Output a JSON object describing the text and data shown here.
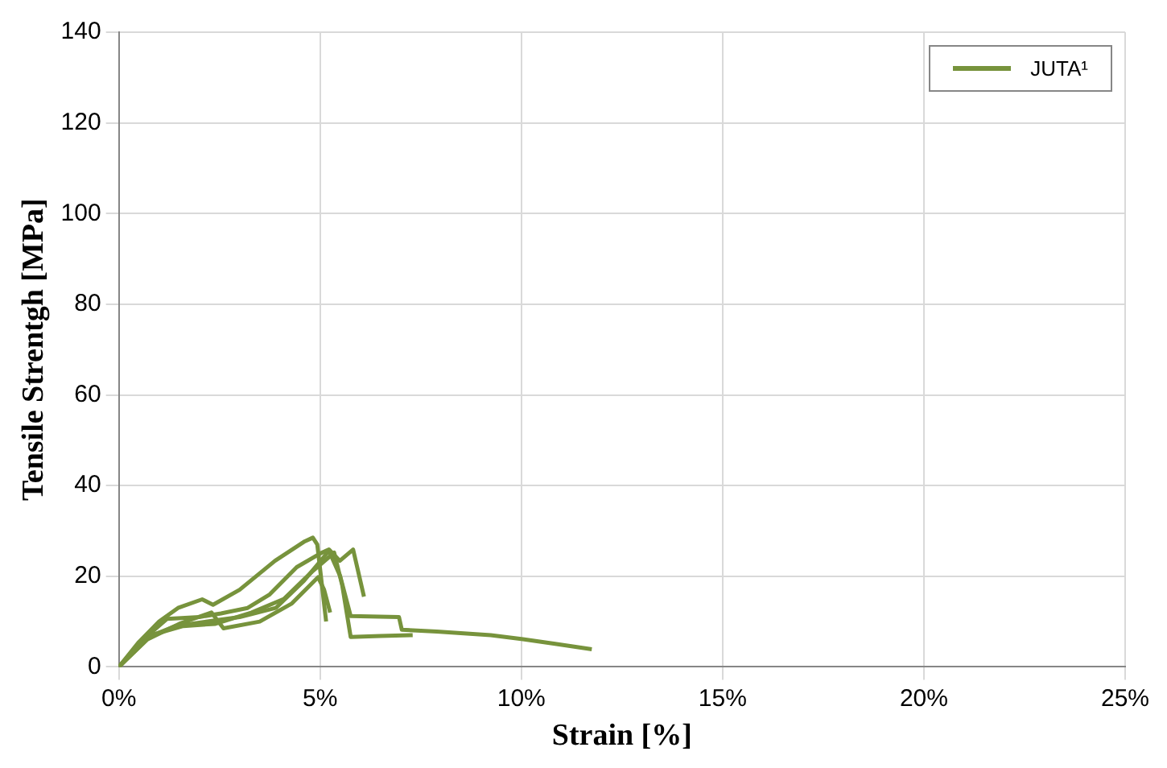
{
  "chart_data": {
    "type": "line",
    "xlabel": "Strain [%]",
    "ylabel": "Tensile Strentgh [MPa]",
    "xlim": [
      0,
      25
    ],
    "xticks": [
      {
        "value": 0,
        "label": "0%"
      },
      {
        "value": 5,
        "label": "5%"
      },
      {
        "value": 10,
        "label": "10%"
      },
      {
        "value": 15,
        "label": "15%"
      },
      {
        "value": 20,
        "label": "20%"
      },
      {
        "value": 25,
        "label": "25%"
      }
    ],
    "ylim": [
      0,
      140
    ],
    "yticks": [
      0,
      20,
      40,
      60,
      80,
      100,
      120,
      140
    ],
    "grid": true,
    "legend": "top right",
    "marker": "none",
    "line_style": "solid",
    "series": [
      {
        "name": "JUTA¹",
        "color": "#77933c",
        "x": [
          0,
          0.5,
          1.0,
          1.47,
          2.07,
          2.34,
          3.0,
          3.88,
          4.62,
          4.82,
          4.93,
          5.15
        ],
        "values": [
          0,
          5.5,
          10,
          13,
          14.9,
          13.7,
          17,
          23.4,
          27.7,
          28.5,
          27,
          10
        ]
      },
      {
        "color": "#77933c",
        "x": [
          0,
          0.6,
          1.2,
          2.0,
          2.54,
          3.2,
          3.75,
          4.42,
          5.0,
          5.22,
          5.49,
          5.82,
          6.09
        ],
        "values": [
          0,
          6,
          10.6,
          11,
          11.8,
          13,
          16,
          22,
          25,
          25.9,
          23.4,
          25.9,
          15.5
        ]
      },
      {
        "color": "#77933c",
        "x": [
          0,
          0.7,
          1.4,
          2.2,
          3.0,
          3.9,
          4.6,
          5.22,
          5.5,
          5.76,
          6.96,
          7.03,
          7.9,
          9.24,
          10.04,
          10.84,
          11.75
        ],
        "values": [
          0,
          6.5,
          9,
          10,
          11,
          13,
          19,
          25.6,
          20,
          11.2,
          11,
          8.2,
          7.8,
          7,
          6.1,
          5.1,
          3.9
        ]
      },
      {
        "color": "#77933c",
        "x": [
          0,
          0.8,
          1.6,
          2.4,
          3.3,
          4.1,
          4.8,
          5.35,
          5.55,
          5.76,
          6.5,
          7.3
        ],
        "values": [
          0,
          7,
          9,
          9.5,
          12,
          15,
          21,
          25.2,
          18,
          6.6,
          6.8,
          7
        ]
      },
      {
        "color": "#77933c",
        "x": [
          0,
          0.7,
          1.5,
          2.3,
          2.6,
          3.5,
          4.3,
          4.95,
          5.1,
          5.25
        ],
        "values": [
          0,
          6,
          9.5,
          12,
          8.5,
          10,
          14,
          19.8,
          17,
          12
        ]
      }
    ]
  }
}
